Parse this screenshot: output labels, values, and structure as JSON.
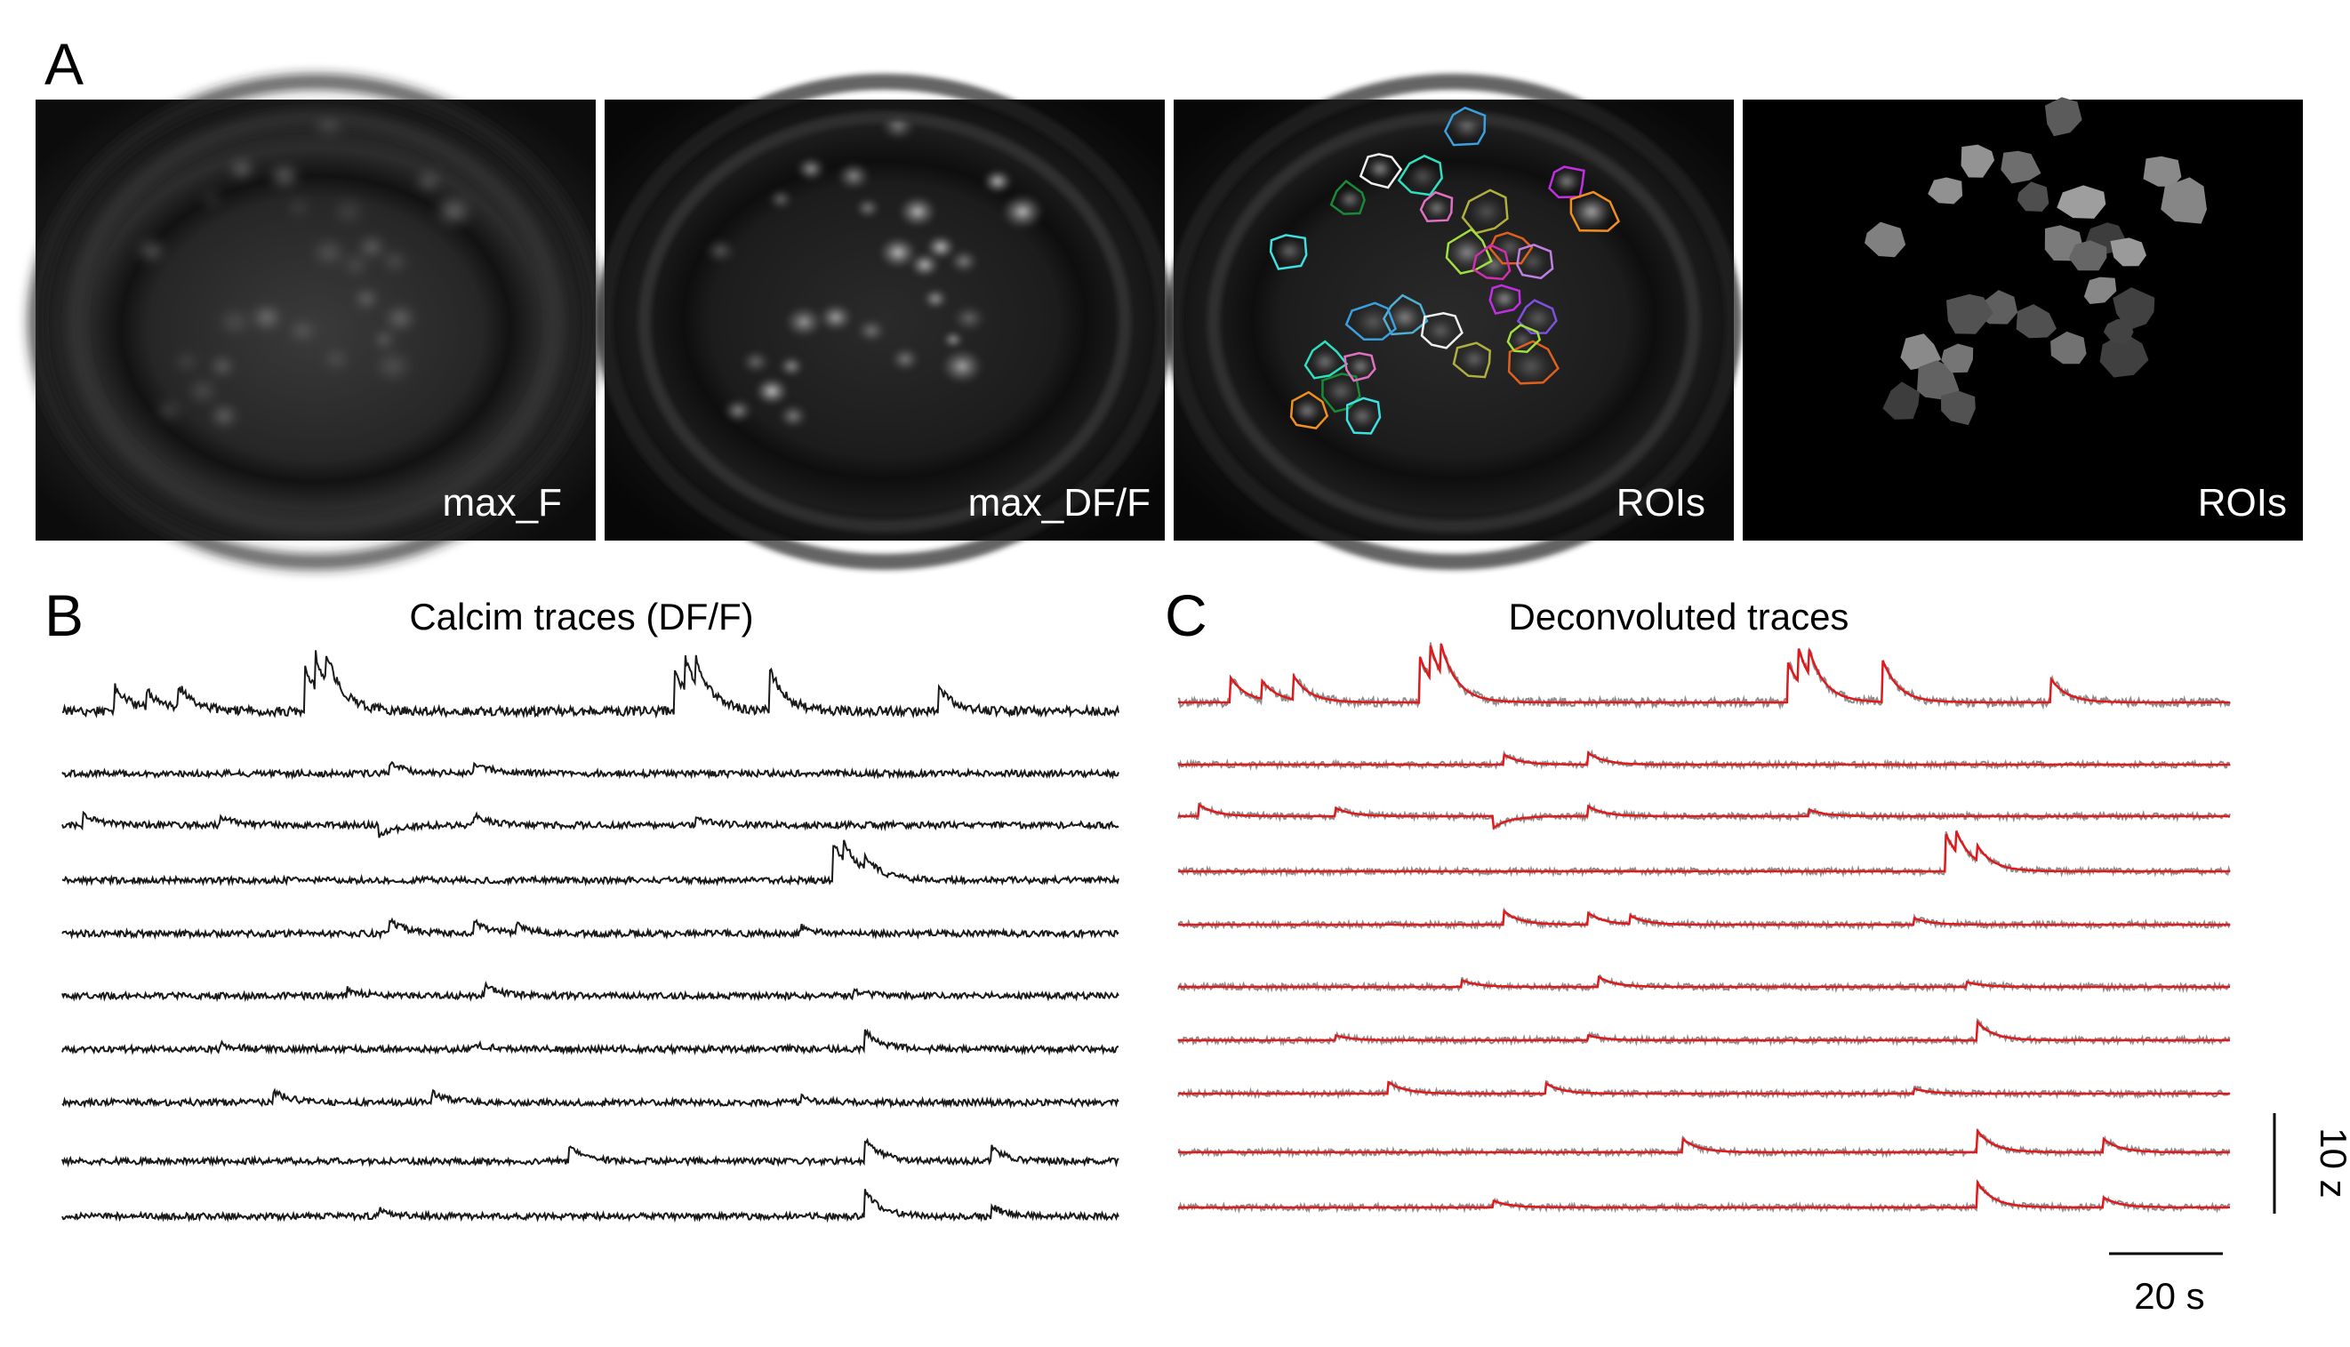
{
  "figure": {
    "panel_a": {
      "letter": "A",
      "images": [
        {
          "label": "max_F"
        },
        {
          "label": "max_DF/F"
        },
        {
          "label": "ROIs"
        },
        {
          "label": "ROIs"
        }
      ]
    },
    "panel_b": {
      "letter": "B",
      "title": "Calcim traces (DF/F)",
      "trace_count": 10,
      "trace_color": "#1a1a1a"
    },
    "panel_c": {
      "letter": "C",
      "title": "Deconvoluted traces",
      "trace_count": 10,
      "raw_color": "#8c8c8c",
      "fit_color": "#e0191c"
    },
    "scale_bars": {
      "vertical_label": "10 z",
      "horizontal_label": "20 s"
    },
    "roi_colors": [
      "#3aa0e0",
      "#f0f0f0",
      "#2ee0c0",
      "#1a8a3a",
      "#b0b040",
      "#e070c0",
      "#e06020",
      "#c030e0",
      "#f09020",
      "#40e0e0",
      "#a0e040",
      "#d030b0",
      "#c080e0",
      "#8050e0",
      "#50b0d0"
    ]
  }
}
